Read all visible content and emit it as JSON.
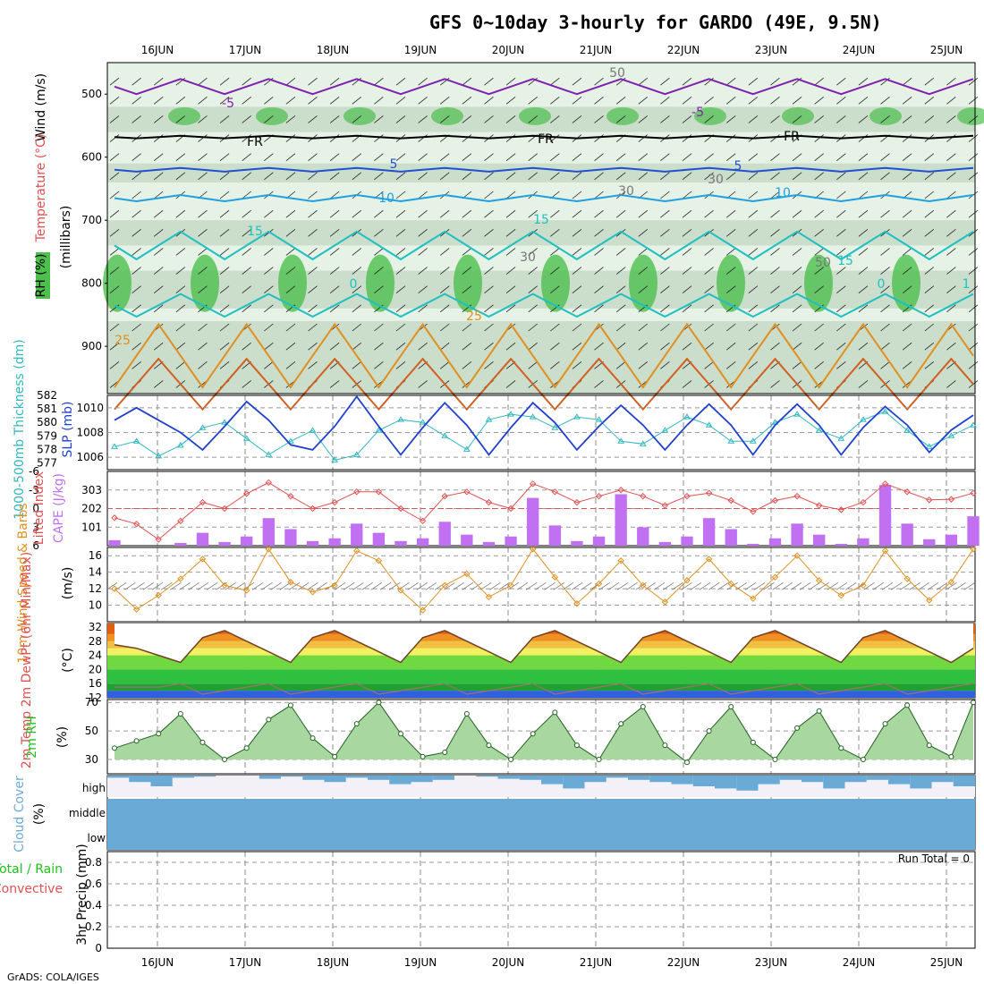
{
  "title": "GFS 0~10day 3-hourly for GARDO (49E, 9.5N)",
  "footer": "GrADS: COLA/IGES",
  "dates": [
    "16JUN",
    "17JUN",
    "18JUN",
    "19JUN",
    "20JUN",
    "21JUN",
    "22JUN",
    "23JUN",
    "24JUN",
    "25JUN"
  ],
  "colors": {
    "rh_green": "#4cbf4c",
    "rh_light": "#e6f2e6",
    "rh_mid": "#c6d9c6",
    "temp_red": "#e05050",
    "thickness_cyan": "#30b8c0",
    "slp_blue": "#2040d0",
    "cape_purple": "#c070f0",
    "wind_orange": "#e09020",
    "cloud_blue": "#6aaad6",
    "cloud_bg": "#f4f0f8",
    "precip_green": "#20c020",
    "purple_iso": "#8020b0",
    "dark_blue_iso": "#2050d0",
    "light_blue_iso": "#20a0e0",
    "teal_iso": "#20c0c0",
    "orange_iso": "#e09020",
    "darkorange_iso": "#d06020"
  },
  "panels": {
    "upper": {
      "label_wind": "Wind (m/s)",
      "label_temp": "Temperature (°C)",
      "label_rh": "RH (%)",
      "label_pressure": "(millibars)",
      "yticks": [
        "500",
        "600",
        "700",
        "800",
        "900"
      ],
      "iso_labels": [
        "-5",
        "-5",
        "FR",
        "FR",
        "FR",
        "5",
        "5",
        "10",
        "10",
        "15",
        "15",
        "15",
        "0",
        "0",
        "25",
        "25",
        "30",
        "30",
        "30",
        "50",
        "50",
        "1"
      ]
    },
    "slp": {
      "label_thick": "1000-500mb Thickness (dm)",
      "label_slp": "SLP (mb)",
      "yticks_left": [
        "582",
        "581",
        "580",
        "579",
        "578",
        "577"
      ],
      "yticks_right": [
        "1010",
        "1008",
        "1006"
      ]
    },
    "cape": {
      "label_li": "Lifted Index",
      "label_cape": "CAPE (J/kg)",
      "yticks_left": [
        "-6",
        "-3",
        "0",
        "3",
        "6"
      ],
      "yticks_right": [
        "303",
        "202",
        "101"
      ]
    },
    "wind10": {
      "label": "10m Wind Speed & Barbs",
      "unit": "(m/s)",
      "yticks": [
        "16",
        "14",
        "12",
        "10"
      ]
    },
    "temp2m": {
      "label": "2m Temp 2m DewPt (6hr Min/Max)",
      "unit": "(°C)",
      "yticks": [
        "32",
        "28",
        "24",
        "20",
        "16",
        "12"
      ]
    },
    "rh2m": {
      "label": "2m RH",
      "unit": "(%)",
      "yticks": [
        "70",
        "50",
        "30"
      ]
    },
    "cloud": {
      "label": "Cloud Cover",
      "unit": "(%)",
      "levels": [
        "high",
        "middle",
        "low"
      ]
    },
    "precip": {
      "label_total": "Total / Rain",
      "label_conv": "Convective",
      "label_y": "3hr Precip (mm)",
      "yticks": [
        "0.8",
        "0.6",
        "0.4",
        "0.2",
        "0"
      ],
      "run_total": "Run Total = 0"
    }
  },
  "chart_data": [
    {
      "type": "line",
      "title": "1000-500mb Thickness (dm) / SLP (mb)",
      "x": [
        "15JUN12",
        "15JUN18",
        "16JUN00",
        "16JUN06",
        "16JUN12",
        "16JUN18",
        "17JUN00",
        "17JUN06",
        "17JUN12",
        "17JUN18",
        "18JUN00",
        "18JUN06",
        "18JUN12",
        "18JUN18",
        "19JUN00",
        "19JUN06",
        "19JUN12",
        "19JUN18",
        "20JUN00",
        "20JUN06",
        "20JUN12",
        "20JUN18",
        "21JUN00",
        "21JUN06",
        "21JUN12",
        "21JUN18",
        "22JUN00",
        "22JUN06",
        "22JUN12",
        "22JUN18",
        "23JUN00",
        "23JUN06",
        "23JUN12",
        "23JUN18",
        "24JUN00",
        "24JUN06",
        "24JUN12",
        "24JUN18",
        "25JUN00",
        "25JUN06"
      ],
      "series": [
        {
          "name": "SLP (mb)",
          "values": [
            1009.0,
            1010.0,
            1009.0,
            1008.0,
            1006.6,
            1008.5,
            1010.5,
            1009.0,
            1007.0,
            1006.6,
            1008.5,
            1010.9,
            1008.5,
            1006.2,
            1008.4,
            1010.4,
            1008.6,
            1006.2,
            1008.4,
            1010.4,
            1008.8,
            1006.6,
            1008.5,
            1010.2,
            1008.6,
            1006.6,
            1008.6,
            1010.3,
            1008.6,
            1006.2,
            1008.6,
            1010.3,
            1008.6,
            1006.2,
            1008.4,
            1010.1,
            1008.6,
            1006.4,
            1008.2,
            1009.4
          ]
        },
        {
          "name": "1000-500mb Thickness (dm)",
          "values": [
            578.2,
            578.6,
            577.5,
            578.3,
            579.6,
            580.0,
            578.8,
            577.6,
            578.6,
            579.4,
            577.2,
            577.6,
            579.4,
            580.2,
            580.0,
            579.0,
            578.0,
            580.2,
            580.6,
            580.4,
            579.6,
            580.4,
            580.2,
            578.6,
            578.4,
            579.4,
            580.4,
            579.8,
            578.6,
            578.6,
            580.0,
            580.6,
            579.4,
            578.8,
            580.2,
            580.8,
            579.4,
            578.2,
            579.0,
            579.8
          ]
        }
      ],
      "ylim_slp": [
        1005,
        1011
      ],
      "ylim_thick": [
        576.5,
        582
      ]
    },
    {
      "type": "bar",
      "title": "Lifted Index / CAPE (J/kg)",
      "x": [
        "15JUN12",
        "15JUN18",
        "16JUN00",
        "16JUN06",
        "16JUN12",
        "16JUN18",
        "17JUN00",
        "17JUN06",
        "17JUN12",
        "17JUN18",
        "18JUN00",
        "18JUN06",
        "18JUN12",
        "18JUN18",
        "19JUN00",
        "19JUN06",
        "19JUN12",
        "19JUN18",
        "20JUN00",
        "20JUN06",
        "20JUN12",
        "20JUN18",
        "21JUN00",
        "21JUN06",
        "21JUN12",
        "21JUN18",
        "22JUN00",
        "22JUN06",
        "22JUN12",
        "22JUN18",
        "23JUN00",
        "23JUN06",
        "23JUN12",
        "23JUN18",
        "24JUN00",
        "24JUN06",
        "24JUN12",
        "24JUN18",
        "25JUN00",
        "25JUN06"
      ],
      "series": [
        {
          "name": "CAPE (J/kg)",
          "values": [
            30,
            0,
            0,
            15,
            70,
            20,
            50,
            150,
            90,
            25,
            40,
            120,
            70,
            25,
            40,
            130,
            60,
            20,
            50,
            260,
            110,
            25,
            50,
            280,
            100,
            20,
            50,
            150,
            90,
            10,
            40,
            120,
            60,
            10,
            40,
            330,
            120,
            35,
            60,
            160
          ]
        },
        {
          "name": "Lifted Index",
          "values": [
            1.5,
            2.5,
            5,
            2,
            -1,
            0,
            -2.4,
            -4.2,
            -2,
            0,
            -1,
            -2.7,
            -2.7,
            0,
            2,
            -2,
            -2.7,
            -1,
            0,
            -4,
            -2.7,
            -1,
            -2,
            -3,
            -2,
            -0.5,
            -2,
            -2.5,
            -1.3,
            0.5,
            -1.3,
            -2,
            -0.5,
            0.2,
            -1,
            -4,
            -2.7,
            -1.4,
            -1.5,
            -2.5
          ]
        }
      ],
      "ylim_li": [
        -6,
        6
      ],
      "ylim_cape": [
        0,
        404
      ]
    },
    {
      "type": "line",
      "title": "10m Wind Speed & Barbs",
      "x": [
        "15JUN12",
        "15JUN18",
        "16JUN00",
        "16JUN06",
        "16JUN12",
        "16JUN18",
        "17JUN00",
        "17JUN06",
        "17JUN12",
        "17JUN18",
        "18JUN00",
        "18JUN06",
        "18JUN12",
        "18JUN18",
        "19JUN00",
        "19JUN06",
        "19JUN12",
        "19JUN18",
        "20JUN00",
        "20JUN06",
        "20JUN12",
        "20JUN18",
        "21JUN00",
        "21JUN06",
        "21JUN12",
        "21JUN18",
        "22JUN00",
        "22JUN06",
        "22JUN12",
        "22JUN18",
        "23JUN00",
        "23JUN06",
        "23JUN12",
        "23JUN18",
        "24JUN00",
        "24JUN06",
        "24JUN12",
        "24JUN18",
        "25JUN00",
        "25JUN06"
      ],
      "series": [
        {
          "name": "10m Wind Speed (m/s)",
          "values": [
            12.0,
            9.5,
            11.2,
            13.2,
            15.6,
            12.4,
            11.8,
            16.8,
            12.8,
            11.6,
            12.4,
            16.6,
            15.4,
            11.8,
            9.4,
            12.4,
            13.8,
            11.0,
            12.4,
            16.8,
            13.4,
            10.2,
            12.6,
            15.4,
            12.4,
            10.4,
            13.0,
            15.6,
            12.6,
            10.8,
            13.4,
            16.0,
            13.0,
            11.2,
            12.4,
            16.6,
            13.2,
            10.6,
            12.8,
            16.8
          ]
        }
      ],
      "ylim": [
        8,
        17
      ]
    },
    {
      "type": "area",
      "title": "2m Temp / 2m DewPt",
      "x": [
        "15JUN12",
        "15JUN18",
        "16JUN00",
        "16JUN06",
        "16JUN12",
        "16JUN18",
        "17JUN00",
        "17JUN06",
        "17JUN12",
        "17JUN18",
        "18JUN00",
        "18JUN06",
        "18JUN12",
        "18JUN18",
        "19JUN00",
        "19JUN06",
        "19JUN12",
        "19JUN18",
        "20JUN00",
        "20JUN06",
        "20JUN12",
        "20JUN18",
        "21JUN00",
        "21JUN06",
        "21JUN12",
        "21JUN18",
        "22JUN00",
        "22JUN06",
        "22JUN12",
        "22JUN18",
        "23JUN00",
        "23JUN06",
        "23JUN12",
        "23JUN18",
        "24JUN00",
        "24JUN06",
        "24JUN12",
        "24JUN18",
        "25JUN00",
        "25JUN06"
      ],
      "series": [
        {
          "name": "2m Temp (°C)",
          "values": [
            27,
            26,
            24,
            22,
            29,
            31,
            28,
            25,
            22,
            29,
            31,
            28,
            25,
            22,
            29,
            31,
            28,
            25,
            22,
            29,
            31,
            28,
            25,
            22,
            29,
            31,
            28,
            25,
            22,
            29,
            31,
            28,
            25,
            22,
            29,
            31,
            28,
            25,
            22,
            26
          ]
        },
        {
          "name": "2m DewPt (°C)",
          "values": [
            15,
            15,
            15,
            16,
            13,
            14,
            15,
            16,
            13,
            14,
            15,
            16,
            13,
            14,
            15,
            16,
            13,
            14,
            15,
            16,
            13,
            14,
            15,
            16,
            13,
            14,
            15,
            16,
            13,
            14,
            15,
            16,
            13,
            14,
            15,
            16,
            13,
            14,
            15,
            16
          ]
        }
      ],
      "ylim": [
        12,
        33
      ]
    },
    {
      "type": "area",
      "title": "2m RH",
      "x": [
        "15JUN12",
        "15JUN18",
        "16JUN00",
        "16JUN06",
        "16JUN12",
        "16JUN18",
        "17JUN00",
        "17JUN06",
        "17JUN12",
        "17JUN18",
        "18JUN00",
        "18JUN06",
        "18JUN12",
        "18JUN18",
        "19JUN00",
        "19JUN06",
        "19JUN12",
        "19JUN18",
        "20JUN00",
        "20JUN06",
        "20JUN12",
        "20JUN18",
        "21JUN00",
        "21JUN06",
        "21JUN12",
        "21JUN18",
        "22JUN00",
        "22JUN06",
        "22JUN12",
        "22JUN18",
        "23JUN00",
        "23JUN06",
        "23JUN12",
        "23JUN18",
        "24JUN00",
        "24JUN06",
        "24JUN12",
        "24JUN18",
        "25JUN00",
        "25JUN06"
      ],
      "series": [
        {
          "name": "2m RH (%)",
          "values": [
            38,
            43,
            48,
            62,
            42,
            30,
            38,
            58,
            68,
            45,
            32,
            55,
            70,
            48,
            32,
            35,
            62,
            40,
            30,
            48,
            63,
            40,
            30,
            55,
            67,
            40,
            28,
            50,
            67,
            42,
            30,
            52,
            64,
            38,
            30,
            55,
            68,
            40,
            32,
            70
          ]
        }
      ],
      "ylim": [
        20,
        72
      ]
    },
    {
      "type": "bar",
      "title": "Cloud Cover",
      "levels": [
        "high",
        "middle",
        "low"
      ],
      "series": [
        {
          "name": "high (%)",
          "values": [
            10,
            30,
            50,
            10,
            5,
            0,
            0,
            15,
            5,
            20,
            30,
            10,
            20,
            40,
            30,
            20,
            0,
            5,
            15,
            20,
            40,
            60,
            30,
            10,
            20,
            30,
            40,
            50,
            60,
            70,
            40,
            20,
            30,
            60,
            30,
            20,
            40,
            60,
            30,
            50
          ]
        },
        {
          "name": "middle (%)",
          "values": [
            100,
            100,
            100,
            100,
            100,
            100,
            100,
            100,
            100,
            100,
            100,
            100,
            100,
            100,
            100,
            100,
            100,
            100,
            100,
            100,
            100,
            100,
            100,
            100,
            100,
            100,
            100,
            100,
            100,
            100,
            100,
            100,
            100,
            100,
            100,
            100,
            100,
            100,
            100,
            100
          ]
        },
        {
          "name": "low (%)",
          "values": [
            100,
            100,
            100,
            100,
            100,
            100,
            100,
            100,
            100,
            100,
            100,
            100,
            100,
            100,
            100,
            100,
            100,
            100,
            100,
            100,
            100,
            100,
            100,
            100,
            100,
            100,
            100,
            100,
            100,
            100,
            100,
            100,
            100,
            100,
            100,
            100,
            100,
            100,
            100,
            100
          ]
        }
      ]
    },
    {
      "type": "bar",
      "title": "3hr Precip (mm)",
      "series": [
        {
          "name": "Total / Rain",
          "values": [
            0,
            0,
            0,
            0,
            0,
            0,
            0,
            0,
            0,
            0
          ]
        },
        {
          "name": "Convective",
          "values": [
            0,
            0,
            0,
            0,
            0,
            0,
            0,
            0,
            0,
            0
          ]
        }
      ],
      "ylim": [
        0,
        0.9
      ]
    }
  ]
}
